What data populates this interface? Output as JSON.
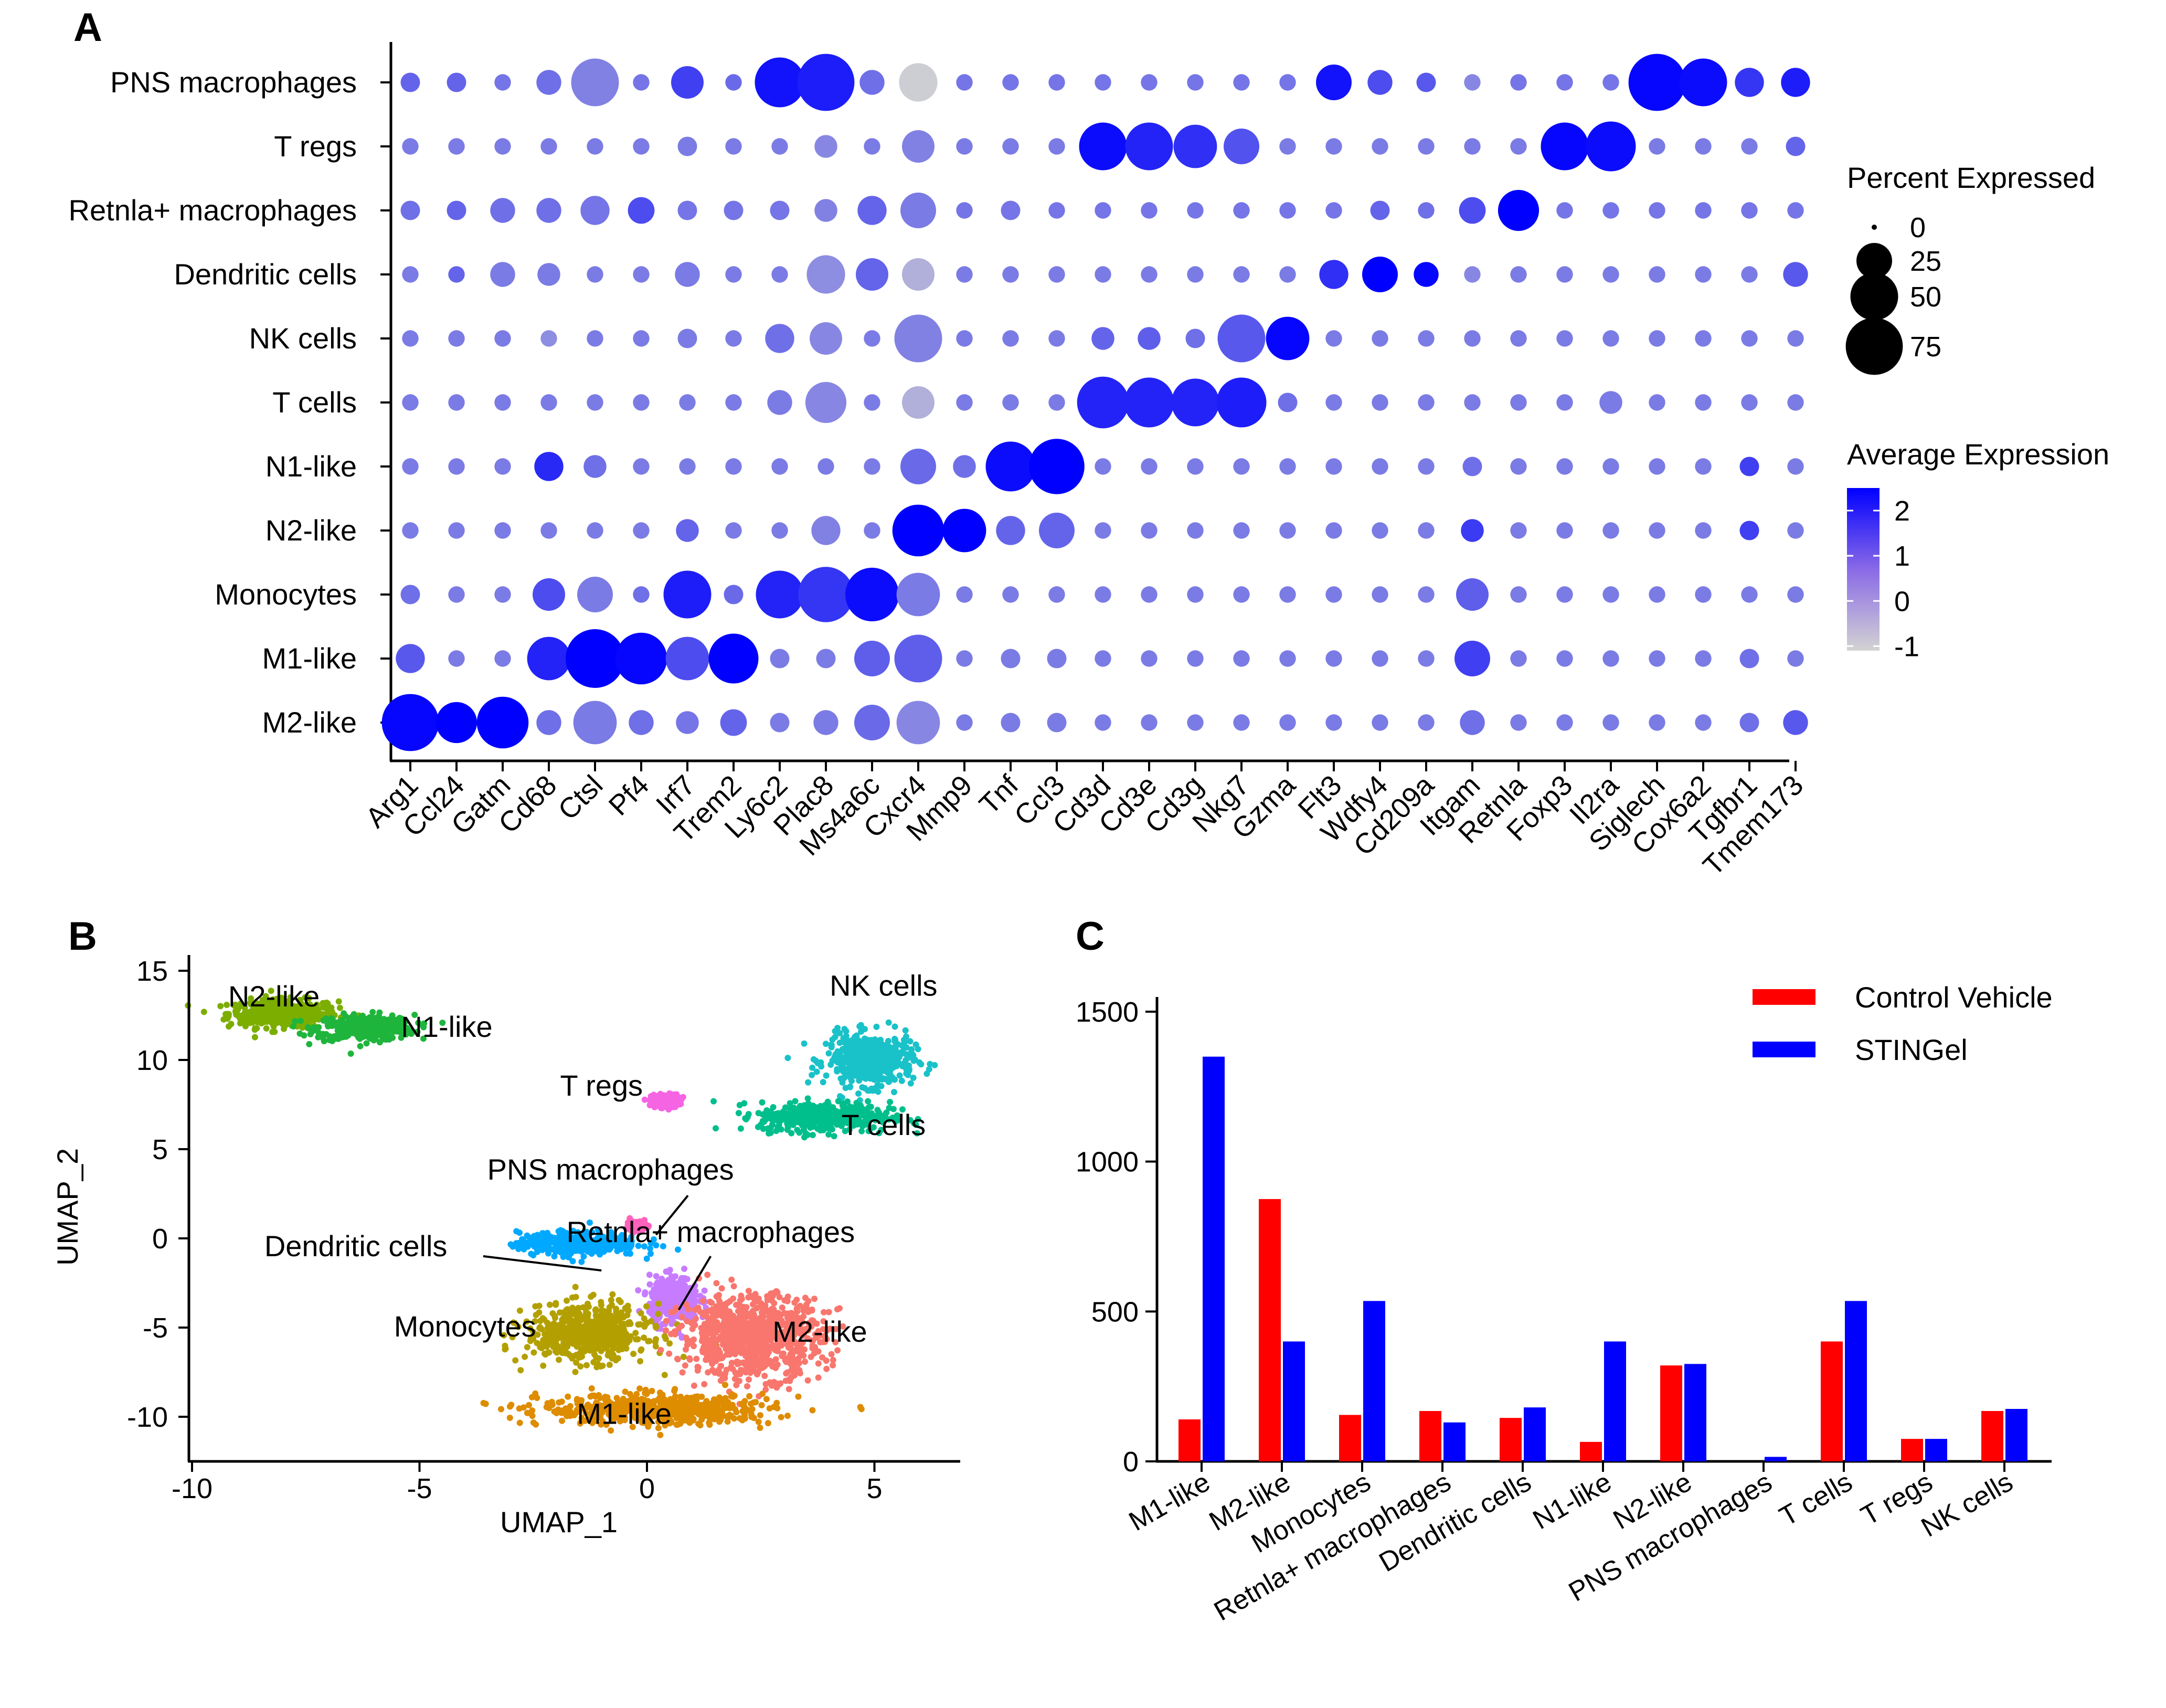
{
  "panels": {
    "a": "A",
    "b": "B",
    "c": "C"
  },
  "colors": {
    "control": "#ff0000",
    "stingel": "#0000ff",
    "expr_low": "#d3d3d3",
    "expr_high": "#0000ff"
  },
  "chart_data": [
    {
      "type": "dotplot",
      "panel": "A",
      "cell_types": [
        "PNS macrophages",
        "T regs",
        "Retnla+ macrophages",
        "Dendritic cells",
        "NK cells",
        "T cells",
        "N1-like",
        "N2-like",
        "Monocytes",
        "M1-like",
        "M2-like"
      ],
      "genes": [
        "Arg1",
        "Ccl24",
        "Gatm",
        "Cd68",
        "Ctsl",
        "Pf4",
        "Irf7",
        "Trem2",
        "Ly6c2",
        "Plac8",
        "Ms4a6c",
        "Cxcr4",
        "Mmp9",
        "Tnf",
        "Ccl3",
        "Cd3d",
        "Cd3e",
        "Cd3g",
        "Nkg7",
        "Gzma",
        "Flt3",
        "Wdfy4",
        "Cd209a",
        "Itgam",
        "Retnla",
        "Foxp3",
        "Il2ra",
        "Siglech",
        "Cox6a2",
        "Tgfbr1",
        "Tmem173"
      ],
      "percent_expressed": [
        [
          5,
          5,
          3,
          10,
          50,
          3,
          20,
          3,
          55,
          75,
          10,
          30,
          3,
          3,
          3,
          3,
          3,
          3,
          3,
          3,
          25,
          10,
          5,
          3,
          3,
          3,
          3,
          75,
          50,
          15,
          15
        ],
        [
          3,
          3,
          3,
          3,
          3,
          3,
          5,
          3,
          3,
          8,
          3,
          20,
          3,
          3,
          3,
          50,
          50,
          40,
          25,
          3,
          3,
          3,
          3,
          3,
          3,
          50,
          55,
          3,
          3,
          3,
          5
        ],
        [
          5,
          5,
          10,
          10,
          15,
          12,
          5,
          5,
          5,
          8,
          15,
          25,
          3,
          5,
          3,
          3,
          3,
          3,
          3,
          3,
          3,
          5,
          3,
          12,
          35,
          3,
          3,
          3,
          3,
          3,
          3
        ],
        [
          3,
          3,
          10,
          8,
          3,
          3,
          10,
          3,
          3,
          30,
          20,
          20,
          3,
          3,
          3,
          3,
          3,
          3,
          3,
          3,
          15,
          25,
          10,
          3,
          3,
          3,
          3,
          3,
          3,
          3,
          10
        ],
        [
          3,
          3,
          3,
          3,
          3,
          3,
          5,
          3,
          15,
          20,
          3,
          50,
          3,
          3,
          3,
          8,
          8,
          5,
          50,
          40,
          3,
          3,
          3,
          3,
          3,
          3,
          3,
          3,
          3,
          3,
          3
        ],
        [
          3,
          3,
          3,
          3,
          3,
          3,
          3,
          3,
          10,
          35,
          3,
          20,
          3,
          3,
          3,
          60,
          55,
          50,
          55,
          5,
          3,
          3,
          3,
          3,
          3,
          3,
          8,
          3,
          3,
          3,
          3
        ],
        [
          3,
          3,
          3,
          15,
          8,
          3,
          3,
          3,
          3,
          3,
          3,
          25,
          8,
          55,
          70,
          3,
          3,
          3,
          3,
          3,
          3,
          3,
          3,
          5,
          3,
          3,
          3,
          3,
          3,
          5,
          3
        ],
        [
          3,
          3,
          3,
          3,
          3,
          3,
          8,
          3,
          3,
          15,
          3,
          60,
          40,
          15,
          25,
          3,
          3,
          3,
          3,
          3,
          3,
          3,
          3,
          8,
          3,
          3,
          3,
          3,
          3,
          5,
          3
        ],
        [
          5,
          3,
          3,
          20,
          25,
          3,
          50,
          5,
          50,
          70,
          65,
          40,
          3,
          3,
          3,
          3,
          3,
          3,
          3,
          3,
          3,
          3,
          3,
          20,
          3,
          3,
          3,
          3,
          3,
          3,
          3
        ],
        [
          15,
          3,
          3,
          40,
          80,
          60,
          40,
          55,
          5,
          5,
          25,
          50,
          3,
          5,
          5,
          3,
          3,
          3,
          3,
          3,
          3,
          3,
          3,
          25,
          3,
          3,
          3,
          3,
          3,
          5,
          3
        ],
        [
          75,
          35,
          60,
          10,
          40,
          10,
          8,
          12,
          5,
          10,
          25,
          40,
          3,
          5,
          5,
          3,
          3,
          3,
          3,
          3,
          3,
          3,
          3,
          10,
          3,
          3,
          3,
          3,
          3,
          5,
          10
        ]
      ],
      "average_expression": [
        [
          0.8,
          0.8,
          0.5,
          0.6,
          0.3,
          0.5,
          1.4,
          0.7,
          2.2,
          2.0,
          0.6,
          -1.0,
          0.5,
          0.5,
          0.5,
          0.5,
          0.5,
          0.5,
          0.5,
          0.5,
          2.2,
          1.2,
          1.0,
          0.2,
          0.5,
          0.5,
          0.5,
          2.4,
          2.3,
          1.6,
          2.0
        ],
        [
          0.4,
          0.4,
          0.4,
          0.4,
          0.4,
          0.4,
          0.4,
          0.4,
          0.4,
          0.2,
          0.4,
          0.3,
          0.4,
          0.4,
          0.4,
          2.3,
          1.9,
          1.7,
          1.1,
          0.4,
          0.4,
          0.4,
          0.4,
          0.4,
          0.4,
          2.4,
          2.3,
          0.4,
          0.4,
          0.4,
          0.8
        ],
        [
          0.6,
          0.8,
          0.6,
          0.6,
          0.5,
          1.2,
          0.5,
          0.5,
          0.5,
          0.3,
          0.8,
          0.4,
          0.5,
          0.5,
          0.5,
          0.5,
          0.5,
          0.5,
          0.5,
          0.5,
          0.5,
          0.8,
          0.6,
          1.2,
          2.5,
          0.5,
          0.5,
          0.5,
          0.5,
          0.5,
          0.5
        ],
        [
          0.4,
          0.8,
          0.4,
          0.4,
          0.4,
          0.4,
          0.4,
          0.4,
          0.4,
          0.1,
          0.8,
          -0.5,
          0.4,
          0.4,
          0.4,
          0.4,
          0.4,
          0.4,
          0.4,
          0.4,
          1.7,
          2.5,
          2.4,
          0.2,
          0.4,
          0.4,
          0.4,
          0.4,
          0.4,
          0.4,
          1.0
        ],
        [
          0.4,
          0.4,
          0.4,
          0.1,
          0.4,
          0.4,
          0.4,
          0.4,
          0.6,
          0.2,
          0.4,
          0.3,
          0.4,
          0.4,
          0.4,
          0.8,
          0.9,
          0.6,
          1.0,
          2.4,
          0.4,
          0.4,
          0.4,
          0.4,
          0.4,
          0.4,
          0.4,
          0.4,
          0.4,
          0.4,
          0.4
        ],
        [
          0.4,
          0.4,
          0.4,
          0.4,
          0.4,
          0.4,
          0.4,
          0.4,
          0.4,
          0.2,
          0.4,
          -0.5,
          0.4,
          0.4,
          0.4,
          1.9,
          1.9,
          1.9,
          2.0,
          0.6,
          0.4,
          0.4,
          0.4,
          0.4,
          0.4,
          0.4,
          0.4,
          0.4,
          0.4,
          0.4,
          0.4
        ],
        [
          0.4,
          0.4,
          0.4,
          1.8,
          0.6,
          0.4,
          0.4,
          0.4,
          0.4,
          0.4,
          0.4,
          0.7,
          0.6,
          2.3,
          2.5,
          0.4,
          0.4,
          0.4,
          0.4,
          0.4,
          0.4,
          0.4,
          0.4,
          0.6,
          0.4,
          0.4,
          0.4,
          0.4,
          0.4,
          1.4,
          0.4
        ],
        [
          0.4,
          0.4,
          0.4,
          0.4,
          0.4,
          0.4,
          0.8,
          0.4,
          0.4,
          0.3,
          0.4,
          2.6,
          2.5,
          0.8,
          0.8,
          0.4,
          0.4,
          0.4,
          0.4,
          0.4,
          0.4,
          0.4,
          0.4,
          1.5,
          0.4,
          0.4,
          0.4,
          0.4,
          0.4,
          1.4,
          0.4
        ],
        [
          0.6,
          0.4,
          0.4,
          1.2,
          0.4,
          0.6,
          2.0,
          0.7,
          1.9,
          1.6,
          2.3,
          0.4,
          0.4,
          0.4,
          0.4,
          0.4,
          0.4,
          0.4,
          0.4,
          0.4,
          0.4,
          0.4,
          0.4,
          0.9,
          0.4,
          0.4,
          0.4,
          0.4,
          0.4,
          0.4,
          0.4
        ],
        [
          1.0,
          0.4,
          0.4,
          1.9,
          2.6,
          2.4,
          1.2,
          2.5,
          0.4,
          0.4,
          0.9,
          0.9,
          0.4,
          0.4,
          0.4,
          0.4,
          0.4,
          0.4,
          0.4,
          0.4,
          0.4,
          0.4,
          0.4,
          1.4,
          0.4,
          0.4,
          0.4,
          0.4,
          0.4,
          0.6,
          0.4
        ],
        [
          2.4,
          2.5,
          2.5,
          0.6,
          0.4,
          0.6,
          0.5,
          0.8,
          0.4,
          0.4,
          0.7,
          0.2,
          0.4,
          0.4,
          0.4,
          0.4,
          0.4,
          0.4,
          0.4,
          0.4,
          0.4,
          0.4,
          0.4,
          0.6,
          0.4,
          0.4,
          0.4,
          0.4,
          0.4,
          0.6,
          1.0
        ]
      ],
      "legend": {
        "size_title": "Percent Expressed",
        "size_values": [
          0,
          25,
          50,
          75
        ],
        "size_labels": [
          "0",
          "25",
          "50",
          "75"
        ],
        "color_title": "Average Expression",
        "color_ticks": [
          2,
          1,
          0,
          -1
        ],
        "color_labels": [
          "2",
          "1",
          "0",
          "-1"
        ],
        "color_range": [
          -1.1,
          2.5
        ]
      }
    },
    {
      "type": "scatter",
      "panel": "B",
      "xlabel": "UMAP_1",
      "ylabel": "UMAP_2",
      "xlim": [
        -10.3,
        6.8
      ],
      "ylim": [
        -12.3,
        16.2
      ],
      "xticks": [
        -10,
        -5,
        0,
        5
      ],
      "xtick_labels": [
        "-10",
        "-5",
        "0",
        "5"
      ],
      "yticks": [
        15,
        10,
        5,
        0,
        -5,
        -10
      ],
      "ytick_labels": [
        "15",
        "10",
        "5",
        "0",
        "-5",
        "-10"
      ],
      "clusters": [
        {
          "name": "N2-like",
          "label": "N2-like",
          "color": "#7cae00",
          "center": [
            -8.0,
            12.6
          ],
          "spread": [
            1.0,
            0.65
          ],
          "label_pos": [
            -8.2,
            13.0
          ]
        },
        {
          "name": "N1-like",
          "label": "N1-like",
          "color": "#1fb53d",
          "center": [
            -6.2,
            11.8
          ],
          "spread": [
            0.9,
            0.6
          ],
          "label_pos": [
            -4.4,
            11.3
          ]
        },
        {
          "name": "T regs",
          "label": "T regs",
          "color": "#f564e3",
          "center": [
            0.4,
            7.7
          ],
          "spread": [
            0.25,
            0.3
          ],
          "label_pos": [
            -1.0,
            8.0
          ]
        },
        {
          "name": "NK cells",
          "label": "NK cells",
          "color": "#19c2c8",
          "center": [
            4.9,
            10.0
          ],
          "spread": [
            0.8,
            1.2
          ],
          "label_pos": [
            5.2,
            13.6
          ]
        },
        {
          "name": "T cells",
          "label": "T cells",
          "color": "#00bf8c",
          "center": [
            3.9,
            6.8
          ],
          "spread": [
            1.2,
            0.7
          ],
          "label_pos": [
            5.2,
            5.8
          ]
        },
        {
          "name": "PNS macrophages",
          "label": "PNS macrophages",
          "color": "#ff62bc",
          "center": [
            -0.2,
            0.7
          ],
          "spread": [
            0.15,
            0.2
          ],
          "label_pos": [
            -0.8,
            3.3
          ]
        },
        {
          "name": "Dendritic cells",
          "label": "Dendritic cells",
          "color": "#00a9ff",
          "center": [
            -1.5,
            -0.3
          ],
          "spread": [
            1.1,
            0.55
          ],
          "label_pos": [
            -6.4,
            -1.0
          ]
        },
        {
          "name": "Retnla+ macrophages",
          "label": "Retnla+  macrophages",
          "color": "#c77cff",
          "center": [
            0.6,
            -3.5
          ],
          "spread": [
            0.45,
            1.1
          ],
          "label_pos": [
            1.4,
            -0.2
          ]
        },
        {
          "name": "Monocytes",
          "label": "Monocytes",
          "color": "#b3a000",
          "center": [
            -1.3,
            -5.3
          ],
          "spread": [
            1.1,
            1.3
          ],
          "label_pos": [
            -4.0,
            -5.5
          ]
        },
        {
          "name": "M2-like",
          "label": "M2-like",
          "color": "#f8766d",
          "center": [
            2.3,
            -5.5
          ],
          "spread": [
            1.3,
            1.9
          ],
          "label_pos": [
            3.8,
            -5.8
          ]
        },
        {
          "name": "M1-like",
          "label": "M1-like",
          "color": "#de8c00",
          "center": [
            0.2,
            -9.6
          ],
          "spread": [
            2.1,
            0.7
          ],
          "label_pos": [
            -0.5,
            -10.4
          ]
        }
      ],
      "annotations": [
        {
          "label": "PNS macrophages",
          "from": [
            0.2,
            0.2
          ],
          "to": [
            0.9,
            2.4
          ]
        },
        {
          "label": "Dendritic cells",
          "from": [
            -1.0,
            -1.8
          ],
          "to": [
            -3.6,
            -1.0
          ]
        },
        {
          "label": "Retnla+  macrophages",
          "from": [
            0.7,
            -4.0
          ],
          "to": [
            1.4,
            -1.0
          ]
        }
      ]
    },
    {
      "type": "bar",
      "panel": "C",
      "categories": [
        "M1-like",
        "M2-like",
        "Monocytes",
        "Retnla+ macrophages",
        "Dendritic cells",
        "N1-like",
        "N2-like",
        "PNS macrophages",
        "T cells",
        "T regs",
        "NK cells"
      ],
      "series": [
        {
          "name": "Control Vehicle",
          "color": "#ff0000",
          "values": [
            140,
            875,
            155,
            168,
            145,
            65,
            320,
            0,
            400,
            75,
            168
          ]
        },
        {
          "name": "STINGel",
          "color": "#0000ff",
          "values": [
            1350,
            400,
            535,
            130,
            180,
            400,
            325,
            15,
            535,
            75,
            175
          ]
        }
      ],
      "ylim": [
        0,
        1500
      ],
      "yticks": [
        0,
        500,
        1000,
        1500
      ],
      "ytick_labels": [
        "0",
        "500",
        "1000",
        "1500"
      ],
      "legend": [
        "Control Vehicle",
        "STINGel"
      ]
    }
  ]
}
